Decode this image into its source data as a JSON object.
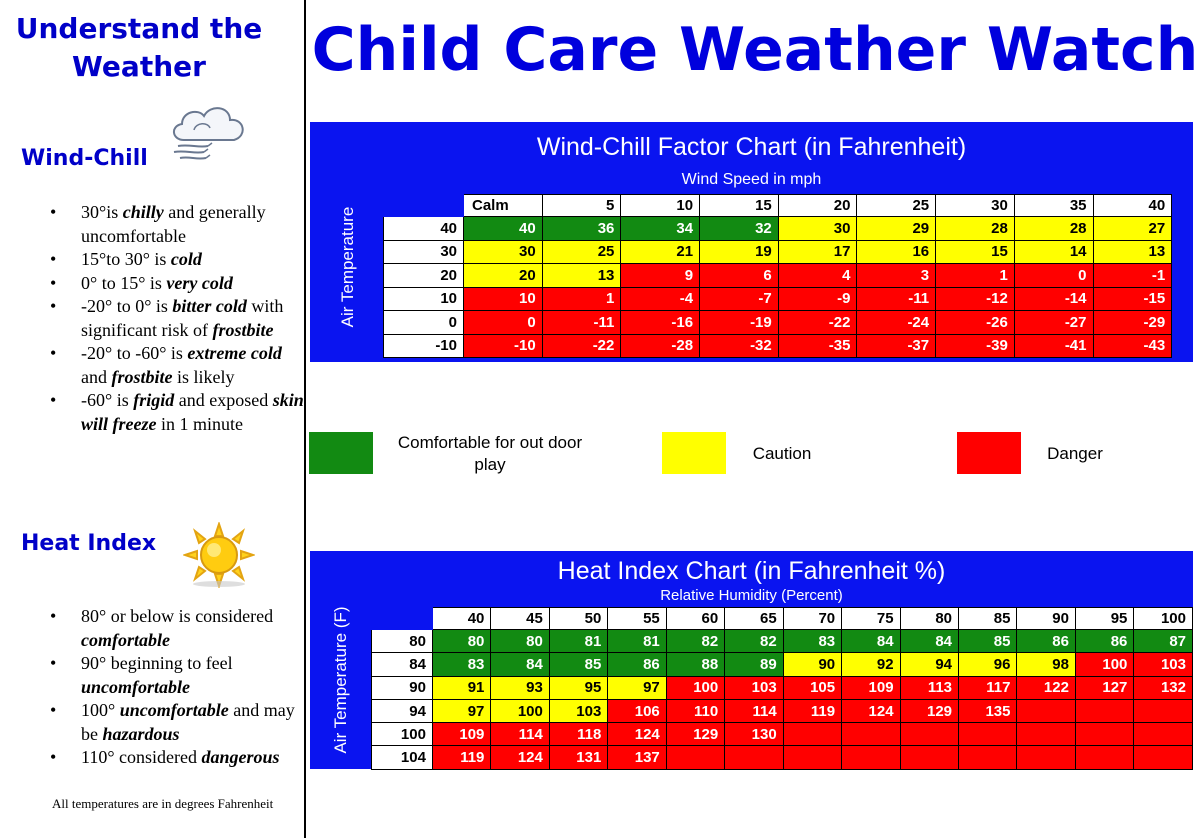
{
  "sidebar": {
    "title_line1": "Understand the",
    "title_line2": "Weather",
    "windchill": {
      "heading": "Wind-Chill",
      "items": [
        [
          {
            "t": "30°is "
          },
          {
            "t": "chilly",
            "s": "bi"
          },
          {
            "t": " and generally uncomfortable"
          }
        ],
        [
          {
            "t": "15°to 30° is "
          },
          {
            "t": "cold",
            "s": "bi"
          }
        ],
        [
          {
            "t": "0° to 15° is "
          },
          {
            "t": "very cold",
            "s": "bi"
          }
        ],
        [
          {
            "t": "-20° to 0° is "
          },
          {
            "t": "bitter cold",
            "s": "bi"
          },
          {
            "t": " with significant  risk of "
          },
          {
            "t": "frostbite",
            "s": "bi"
          }
        ],
        [
          {
            "t": "-20° to -60° is "
          },
          {
            "t": "extreme cold",
            "s": "bi"
          },
          {
            "t": " and "
          },
          {
            "t": "frostbite",
            "s": "bi"
          },
          {
            "t": " is likely"
          }
        ],
        [
          {
            "t": "-60° is "
          },
          {
            "t": "frigid",
            "s": "bi"
          },
          {
            "t": " and exposed "
          },
          {
            "t": "skin will freeze",
            "s": "bi"
          },
          {
            "t": " in 1 minute"
          }
        ]
      ]
    },
    "heatindex": {
      "heading": "Heat Index",
      "items": [
        [
          {
            "t": "80° or below is considered "
          },
          {
            "t": "comfortable",
            "s": "bi"
          }
        ],
        [
          {
            "t": "90° beginning to feel "
          },
          {
            "t": "uncomfortable",
            "s": "bi"
          }
        ],
        [
          {
            "t": "100° "
          },
          {
            "t": "uncomfortable",
            "s": "bi"
          },
          {
            "t": " and may be "
          },
          {
            "t": "hazardous",
            "s": "bi"
          }
        ],
        [
          {
            "t": "110° considered "
          },
          {
            "t": "dangerous",
            "s": "bi"
          }
        ]
      ]
    },
    "footnote": "All temperatures are in degrees Fahrenheit"
  },
  "main_title": "Child Care Weather Watch",
  "colors": {
    "blue": "#0a14f0",
    "green": "#128a12",
    "yellow": "#ffff00",
    "red": "#ff0000",
    "title_blue": "#0000dd"
  },
  "icons": {
    "windchill": "cloud-wind-icon",
    "heatindex": "sun-icon"
  },
  "windchill_chart": {
    "title": "Wind-Chill Factor Chart (in Fahrenheit)",
    "subtitle": "Wind Speed in mph",
    "side_label": "Air Temperature",
    "columns": [
      "Calm",
      "5",
      "10",
      "15",
      "20",
      "25",
      "30",
      "35",
      "40"
    ],
    "rows": [
      {
        "temp": "40",
        "values": [
          "40",
          "36",
          "34",
          "32",
          "30",
          "29",
          "28",
          "28",
          "27"
        ],
        "colors": [
          "g",
          "g",
          "g",
          "g",
          "y",
          "y",
          "y",
          "y",
          "y"
        ]
      },
      {
        "temp": "30",
        "values": [
          "30",
          "25",
          "21",
          "19",
          "17",
          "16",
          "15",
          "14",
          "13"
        ],
        "colors": [
          "y",
          "y",
          "y",
          "y",
          "y",
          "y",
          "y",
          "y",
          "y"
        ]
      },
      {
        "temp": "20",
        "values": [
          "20",
          "13",
          "9",
          "6",
          "4",
          "3",
          "1",
          "0",
          "-1"
        ],
        "colors": [
          "y",
          "y",
          "r",
          "r",
          "r",
          "r",
          "r",
          "r",
          "r"
        ]
      },
      {
        "temp": "10",
        "values": [
          "10",
          "1",
          "-4",
          "-7",
          "-9",
          "-11",
          "-12",
          "-14",
          "-15"
        ],
        "colors": [
          "r",
          "r",
          "r",
          "r",
          "r",
          "r",
          "r",
          "r",
          "r"
        ]
      },
      {
        "temp": "0",
        "values": [
          "0",
          "-11",
          "-16",
          "-19",
          "-22",
          "-24",
          "-26",
          "-27",
          "-29"
        ],
        "colors": [
          "r",
          "r",
          "r",
          "r",
          "r",
          "r",
          "r",
          "r",
          "r"
        ]
      },
      {
        "temp": "-10",
        "values": [
          "-10",
          "-22",
          "-28",
          "-32",
          "-35",
          "-37",
          "-39",
          "-41",
          "-43"
        ],
        "colors": [
          "r",
          "r",
          "r",
          "r",
          "r",
          "r",
          "r",
          "r",
          "r"
        ]
      }
    ]
  },
  "legend": {
    "comfortable": "Comfortable for out door play",
    "caution": "Caution",
    "danger": "Danger"
  },
  "heat_chart": {
    "title": "Heat Index Chart (in Fahrenheit %)",
    "subtitle": "Relative Humidity (Percent)",
    "side_label": "Air Temperature (F)",
    "columns": [
      "40",
      "45",
      "50",
      "55",
      "60",
      "65",
      "70",
      "75",
      "80",
      "85",
      "90",
      "95",
      "100"
    ],
    "rows": [
      {
        "temp": "80",
        "values": [
          "80",
          "80",
          "81",
          "81",
          "82",
          "82",
          "83",
          "84",
          "84",
          "85",
          "86",
          "86",
          "87"
        ],
        "colors": [
          "g",
          "g",
          "g",
          "g",
          "g",
          "g",
          "g",
          "g",
          "g",
          "g",
          "g",
          "g",
          "g"
        ]
      },
      {
        "temp": "84",
        "values": [
          "83",
          "84",
          "85",
          "86",
          "88",
          "89",
          "90",
          "92",
          "94",
          "96",
          "98",
          "100",
          "103"
        ],
        "colors": [
          "g",
          "g",
          "g",
          "g",
          "g",
          "g",
          "y",
          "y",
          "y",
          "y",
          "y",
          "r",
          "r"
        ]
      },
      {
        "temp": "90",
        "values": [
          "91",
          "93",
          "95",
          "97",
          "100",
          "103",
          "105",
          "109",
          "113",
          "117",
          "122",
          "127",
          "132"
        ],
        "colors": [
          "y",
          "y",
          "y",
          "y",
          "r",
          "r",
          "r",
          "r",
          "r",
          "r",
          "r",
          "r",
          "r"
        ]
      },
      {
        "temp": "94",
        "values": [
          "97",
          "100",
          "103",
          "106",
          "110",
          "114",
          "119",
          "124",
          "129",
          "135",
          "",
          "",
          ""
        ],
        "colors": [
          "y",
          "y",
          "y",
          "r",
          "r",
          "r",
          "r",
          "r",
          "r",
          "r",
          "r",
          "r",
          "r"
        ]
      },
      {
        "temp": "100",
        "values": [
          "109",
          "114",
          "118",
          "124",
          "129",
          "130",
          "",
          "",
          "",
          "",
          "",
          "",
          ""
        ],
        "colors": [
          "r",
          "r",
          "r",
          "r",
          "r",
          "r",
          "r",
          "r",
          "r",
          "r",
          "r",
          "r",
          "r"
        ]
      },
      {
        "temp": "104",
        "values": [
          "119",
          "124",
          "131",
          "137",
          "",
          "",
          "",
          "",
          "",
          "",
          "",
          "",
          ""
        ],
        "colors": [
          "r",
          "r",
          "r",
          "r",
          "r",
          "r",
          "r",
          "r",
          "r",
          "r",
          "r",
          "r",
          "r"
        ]
      }
    ]
  }
}
